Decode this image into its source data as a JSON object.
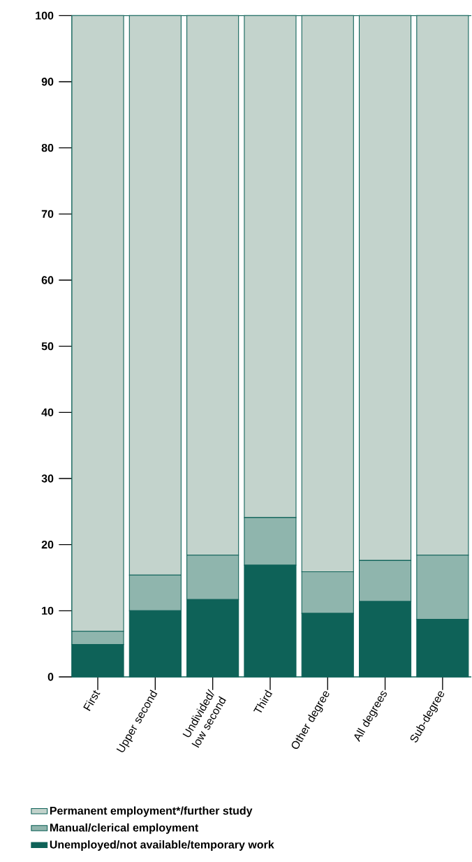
{
  "chart_data": {
    "type": "bar",
    "stacked": true,
    "categories": [
      "First",
      "Upper second",
      "Undivided/ low second",
      "Third",
      "Other degree",
      "All degrees",
      "Sub-degree"
    ],
    "series": [
      {
        "name": "Unemployed/not available/temporary work",
        "color": "#0e6258",
        "values": [
          4.9,
          10.0,
          11.7,
          16.9,
          9.6,
          11.4,
          8.7
        ]
      },
      {
        "name": "Manual/clerical employment",
        "color": "#8fb5ad",
        "values": [
          2.0,
          5.4,
          6.7,
          7.2,
          6.3,
          6.2,
          9.7
        ]
      },
      {
        "name": "Permanent employment*/further study",
        "color": "#c3d3cc",
        "values": [
          93.1,
          84.6,
          81.6,
          75.9,
          84.1,
          82.4,
          81.6
        ]
      }
    ],
    "ylim": [
      0,
      100
    ],
    "yticks": [
      0,
      10,
      20,
      30,
      40,
      50,
      60,
      70,
      80,
      90,
      100
    ],
    "legend": "bottom"
  }
}
